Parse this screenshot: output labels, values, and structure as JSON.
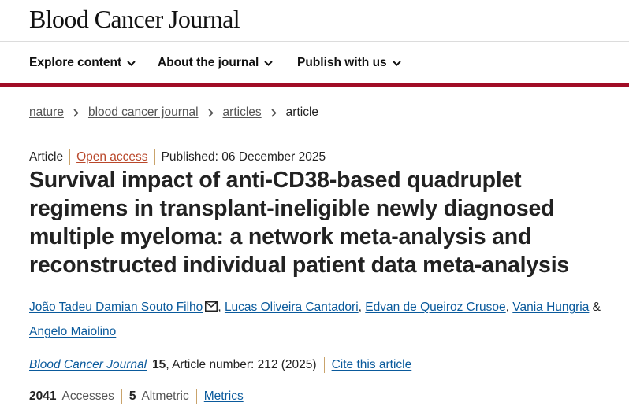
{
  "header": {
    "logo": "Blood Cancer Journal"
  },
  "nav": {
    "items": [
      {
        "label": "Explore content"
      },
      {
        "label": "About the journal"
      },
      {
        "label": "Publish with us"
      }
    ]
  },
  "breadcrumb": {
    "items": [
      "nature",
      "blood cancer journal",
      "articles"
    ],
    "current": "article"
  },
  "article": {
    "type": "Article",
    "access": "Open access",
    "published": "Published: 06 December 2025",
    "title": "Survival impact of anti-CD38-based quadruplet regimens in transplant-ineligible newly diagnosed multiple myeloma: a network meta-analysis and reconstructed individual patient data meta-analysis",
    "authors": [
      "João Tadeu Damian Souto Filho",
      "Lucas Oliveira Cantadori",
      "Edvan de Queiroz Crusoe",
      "Vania Hungria",
      "Angelo Maiolino"
    ],
    "author_sep": ", ",
    "author_and": " & ",
    "journal": "Blood Cancer Journal",
    "volume": "15",
    "article_number": ", Article number: 212 (2025)",
    "cite_label": "Cite this article",
    "accesses_count": "2041",
    "accesses_label": "Accesses",
    "altmetric_count": "5",
    "altmetric_label": "Altmetric",
    "metrics_label": "Metrics"
  },
  "colors": {
    "brand_red": "#a10d26",
    "link_blue": "#0a5a9c",
    "open_access": "#b9472a",
    "divider": "#c9a36b"
  },
  "icons": [
    "chevron-down-icon",
    "chevron-right-icon",
    "mail-icon"
  ]
}
